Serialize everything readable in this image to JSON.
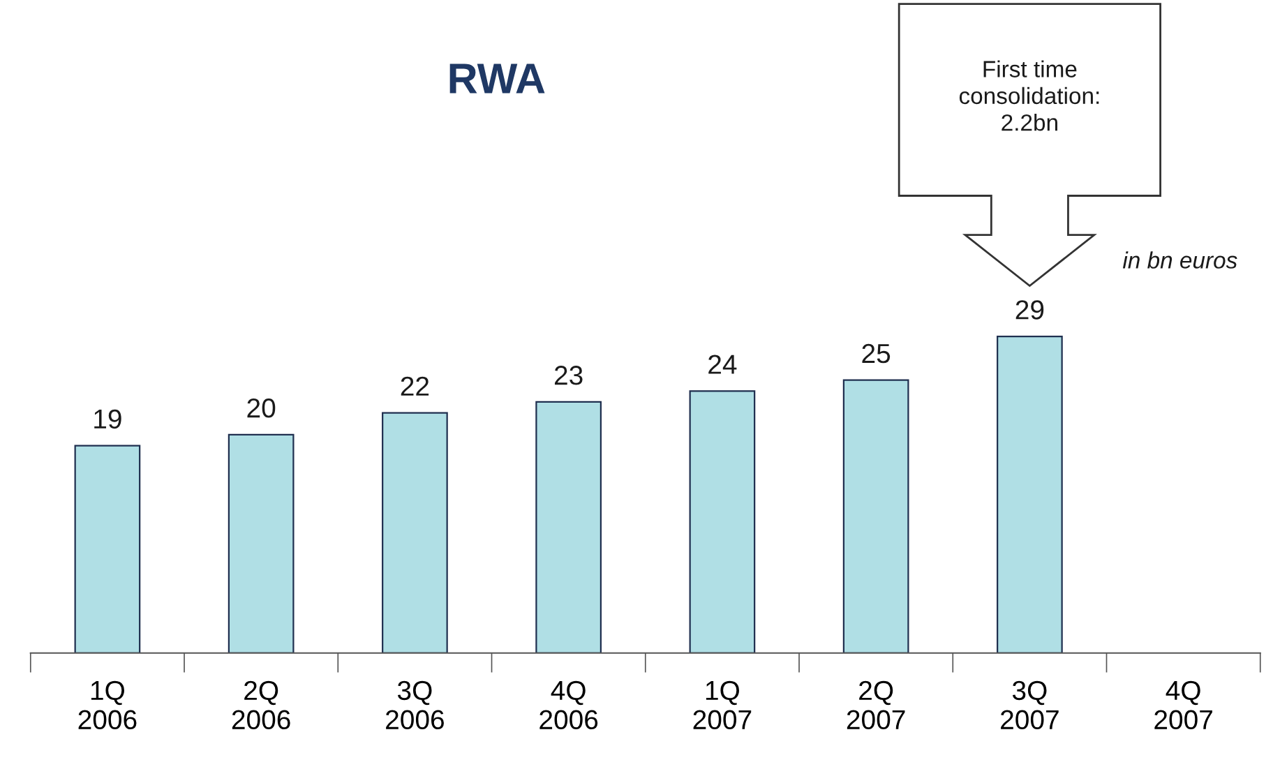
{
  "chart_data": {
    "type": "bar",
    "title": "RWA",
    "categories": [
      "1Q\n2006",
      "2Q\n2006",
      "3Q\n2006",
      "4Q\n2006",
      "1Q\n2007",
      "2Q\n2007",
      "3Q\n2007",
      "4Q\n2007"
    ],
    "values": [
      19,
      20,
      22,
      23,
      24,
      25,
      29,
      null
    ],
    "color": "#b0dfe5",
    "data_labels": true,
    "grid": false,
    "legend": false,
    "annotations": [
      "First time\nconsolidation:\n2.2bn",
      "in bn euros"
    ]
  }
}
